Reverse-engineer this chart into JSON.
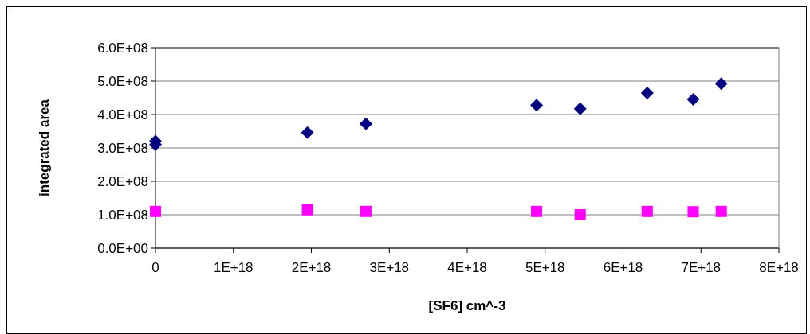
{
  "chart_data": {
    "type": "scatter",
    "xlabel": "[SF6] cm^-3",
    "ylabel": "integrated area",
    "xlim": [
      0,
      8e+18
    ],
    "xticks": [
      0,
      {
        "value": 1e+18,
        "label": "1E+18"
      },
      {
        "value": 2e+18,
        "label": "2E+18"
      },
      {
        "value": 3e+18,
        "label": "3E+18"
      },
      {
        "value": 4e+18,
        "label": "4E+18"
      },
      {
        "value": 5e+18,
        "label": "5E+18"
      },
      {
        "value": 6e+18,
        "label": "6E+18"
      },
      {
        "value": 7e+18,
        "label": "7E+18"
      },
      {
        "value": 8e+18,
        "label": "8E+18"
      }
    ],
    "ylim": [
      0,
      600000000.0
    ],
    "yticks": [
      {
        "value": 0,
        "label": "0.0E+00"
      },
      {
        "value": 100000000.0,
        "label": "1.0E+08"
      },
      {
        "value": 200000000.0,
        "label": "2.0E+08"
      },
      {
        "value": 300000000.0,
        "label": "3.0E+08"
      },
      {
        "value": 400000000.0,
        "label": "4.0E+08"
      },
      {
        "value": 500000000.0,
        "label": "5.0E+08"
      },
      {
        "value": 600000000.0,
        "label": "6.0E+08"
      }
    ],
    "grid": "y",
    "series": [
      {
        "color": "#000080",
        "marker": "diamond",
        "x": [
          0,
          0,
          1.95e+18,
          2.7e+18,
          4.89e+18,
          5.45e+18,
          6.31e+18,
          6.9e+18,
          7.26e+18
        ],
        "values": [
          320000000.0,
          310000000.0,
          346000000.0,
          372000000.0,
          428000000.0,
          417000000.0,
          464000000.0,
          445000000.0,
          492000000.0
        ]
      },
      {
        "color": "#ff00ff",
        "marker": "square",
        "x": [
          0,
          1.95e+18,
          2.7e+18,
          4.89e+18,
          5.45e+18,
          6.31e+18,
          6.9e+18,
          7.26e+18
        ],
        "values": [
          110000000.0,
          115000000.0,
          110000000.0,
          110000000.0,
          100000000.0,
          110000000.0,
          109000000.0,
          110000000.0
        ]
      }
    ]
  }
}
